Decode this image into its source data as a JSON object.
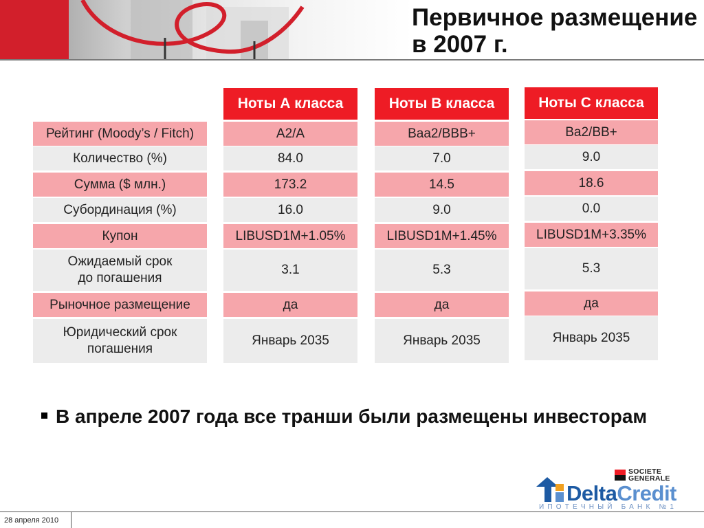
{
  "title": "Первичное размещение в 2007 г.",
  "table": {
    "columns": [
      "Ноты А класса",
      "Ноты В класса",
      "Ноты С класса"
    ],
    "rows": [
      {
        "label": "Рейтинг (Moody’s / Fitch)",
        "values": [
          "A2/A",
          "Baa2/BBB+",
          "Ba2/BB+"
        ],
        "shade": "pink"
      },
      {
        "label": "Количество (%)",
        "values": [
          "84.0",
          "7.0",
          "9.0"
        ],
        "shade": "grey"
      },
      {
        "label": "Сумма ($ млн.)",
        "values": [
          "173.2",
          "14.5",
          "18.6"
        ],
        "shade": "pink"
      },
      {
        "label": "Субординация (%)",
        "values": [
          "16.0",
          "9.0",
          "0.0"
        ],
        "shade": "grey"
      },
      {
        "label": "Купон",
        "values": [
          "LIBUSD1M+1.05%",
          "LIBUSD1M+1.45%",
          "LIBUSD1M+3.35%"
        ],
        "shade": "pink"
      },
      {
        "label": "Ожидаемый срок до погашения",
        "values": [
          "3.1",
          "5.3",
          "5.3"
        ],
        "shade": "grey"
      },
      {
        "label": "Рыночное размещение",
        "values": [
          "да",
          "да",
          "да"
        ],
        "shade": "pink"
      },
      {
        "label": "Юридический срок погашения",
        "values": [
          "Январь 2035",
          "Январь 2035",
          "Январь 2035"
        ],
        "shade": "grey"
      }
    ]
  },
  "bullet": "В апреле 2007 года все транши были размещены инвесторам",
  "logos": {
    "societe_generale": [
      "SOCIETE",
      "GENERALE"
    ],
    "deltacredit_part1": "Delta",
    "deltacredit_part2": "Credit",
    "deltacredit_sub": "ИПОТЕЧНЫЙ БАНК №1"
  },
  "footer": {
    "date": "28 апреля 2010"
  },
  "colors": {
    "accent_red": "#ee1c25",
    "row_pink": "#f6a6ab",
    "row_grey": "#ececec",
    "brand_blue": "#1d5aa3"
  }
}
